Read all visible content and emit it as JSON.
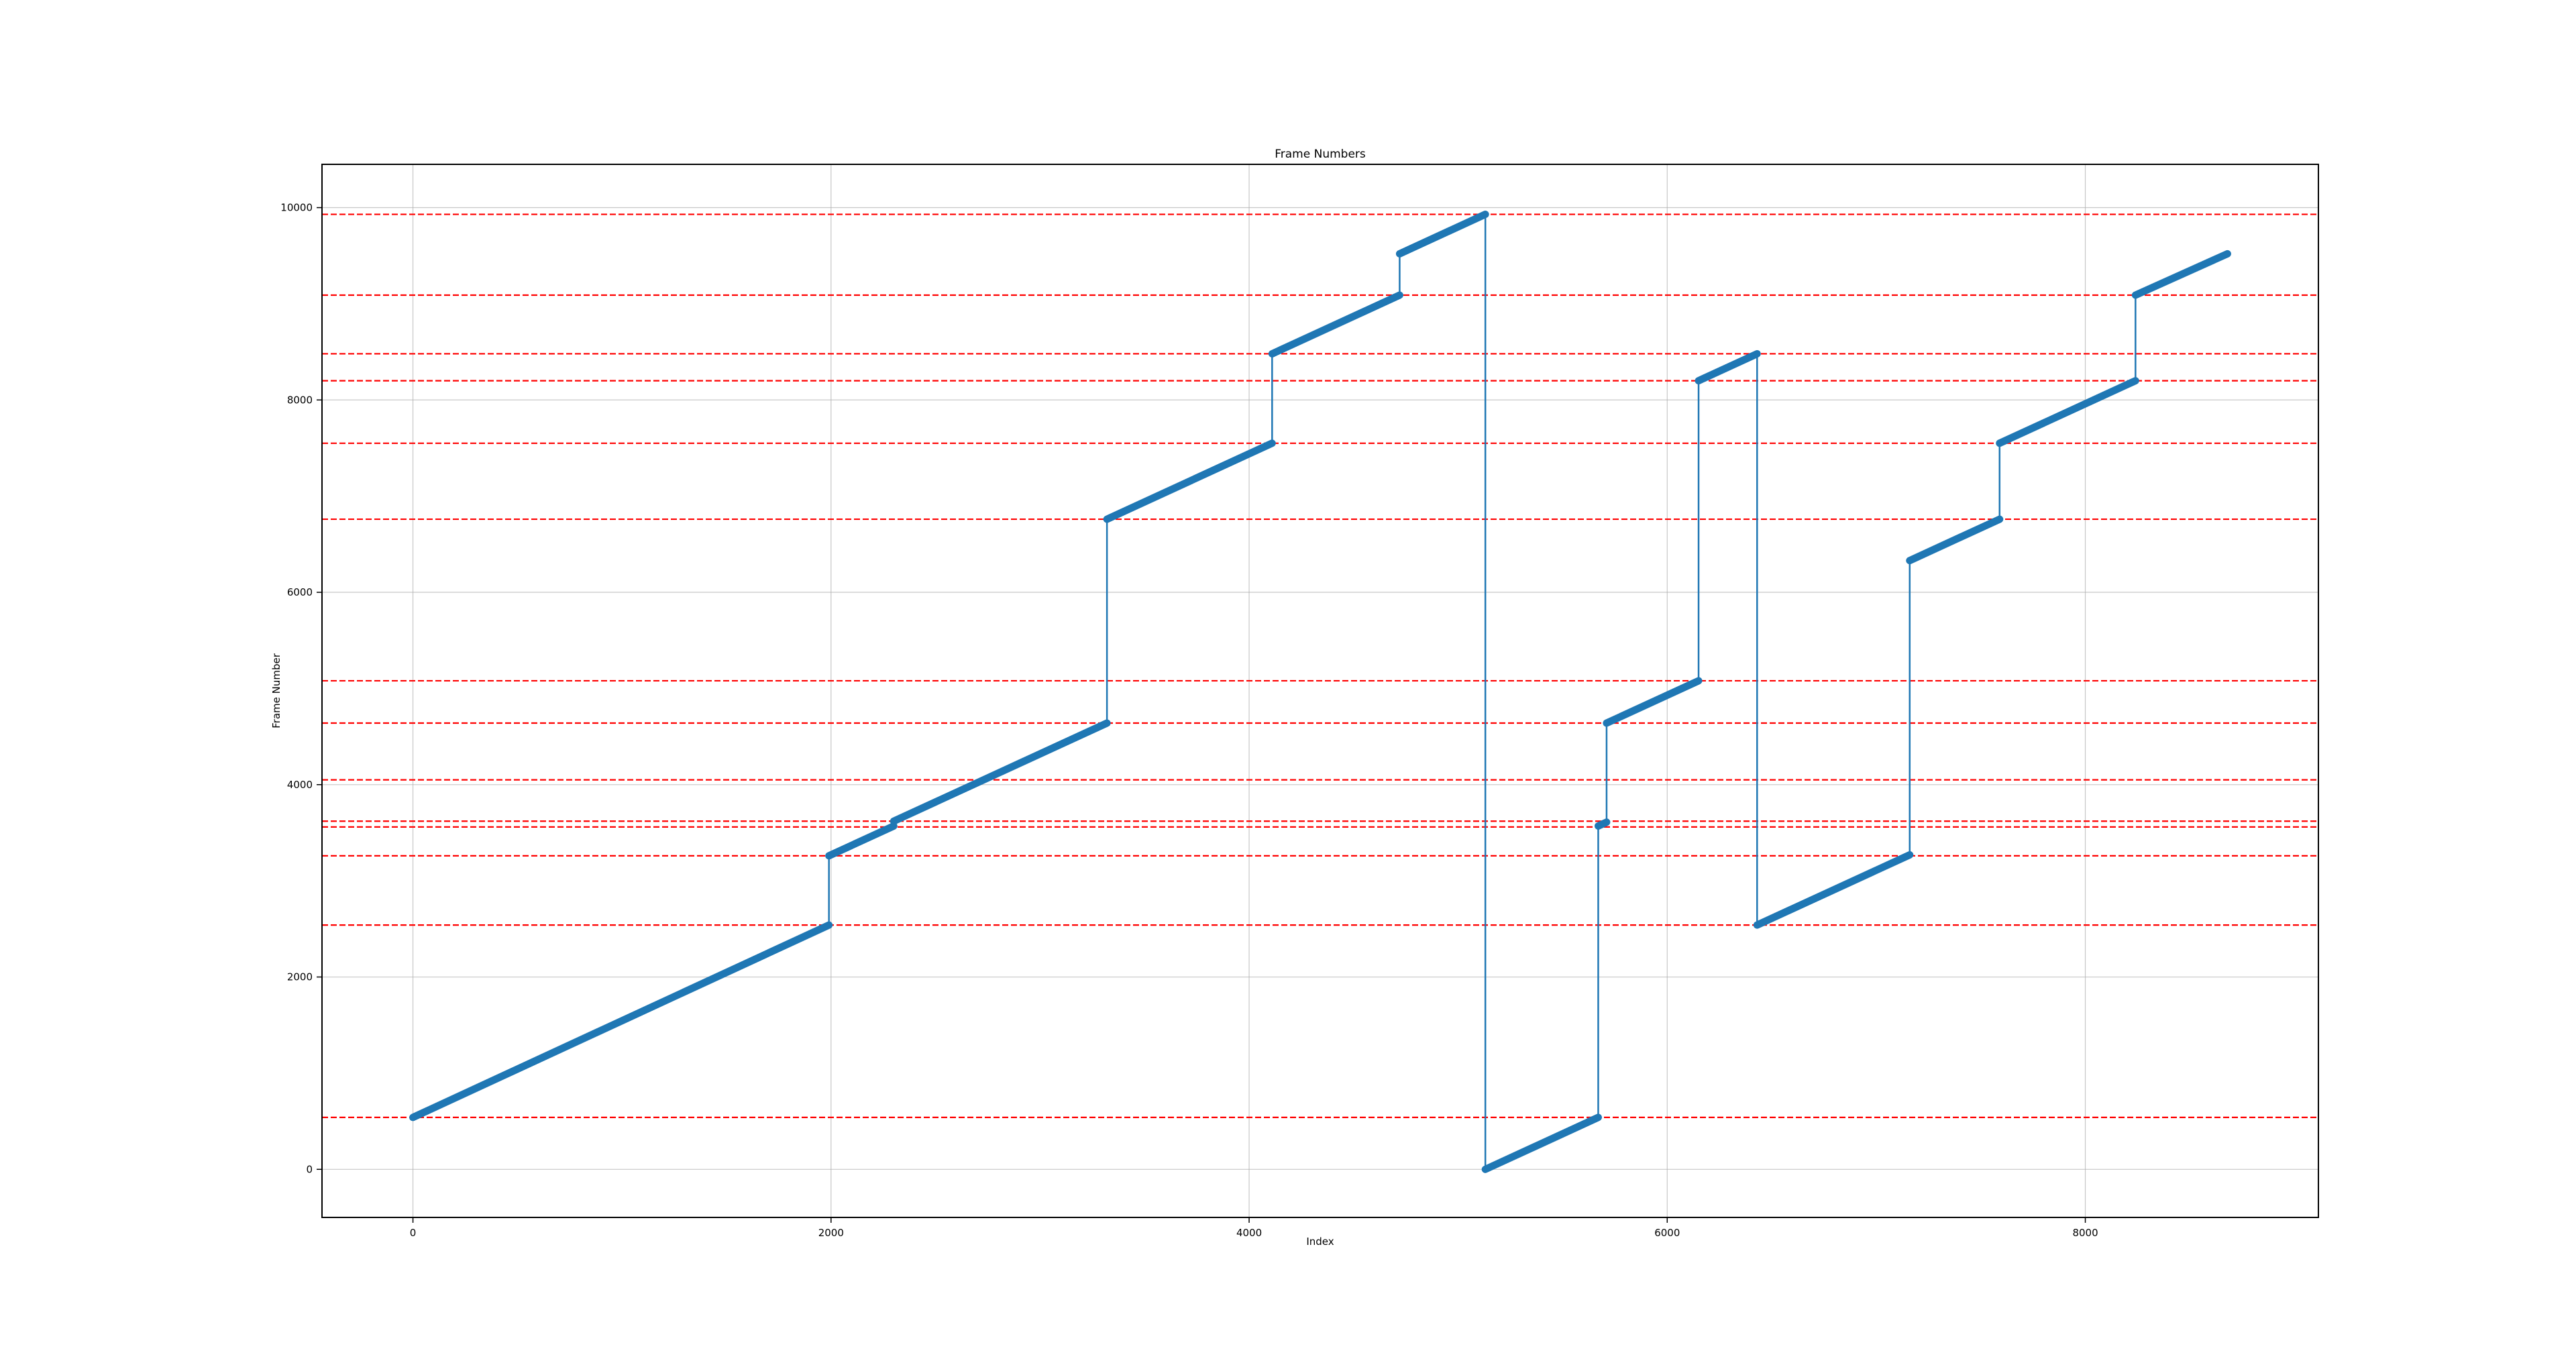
{
  "chart_data": {
    "type": "line",
    "title": "Frame Numbers",
    "xlabel": "Index",
    "ylabel": "Frame Number",
    "xlim": [
      -435,
      9115
    ],
    "ylim": [
      -500,
      10450
    ],
    "xticks": [
      0,
      2000,
      4000,
      6000,
      8000
    ],
    "yticks": [
      0,
      2000,
      4000,
      6000,
      8000,
      10000
    ],
    "xtick_labels": [
      "0",
      "2000",
      "4000",
      "6000",
      "8000"
    ],
    "ytick_labels": [
      "0",
      "2000",
      "4000",
      "6000",
      "8000",
      "10000"
    ],
    "grid": true,
    "legend": "none",
    "series": [
      {
        "color": "#1f77b4",
        "segments": [
          [
            [
              0,
              540
            ],
            [
              1990,
              2540
            ]
          ],
          [
            [
              1990,
              3260
            ],
            [
              2300,
              3570
            ]
          ],
          [
            [
              2300,
              3620
            ],
            [
              3320,
              4640
            ]
          ],
          [
            [
              3320,
              6760
            ],
            [
              4110,
              7550
            ]
          ],
          [
            [
              4110,
              8480
            ],
            [
              4720,
              9090
            ]
          ],
          [
            [
              4720,
              9520
            ],
            [
              5130,
              9930
            ]
          ],
          [
            [
              5130,
              0
            ],
            [
              5670,
              540
            ]
          ],
          [
            [
              5670,
              3570
            ],
            [
              5710,
              3610
            ]
          ],
          [
            [
              5710,
              4640
            ],
            [
              6150,
              5080
            ]
          ],
          [
            [
              6150,
              8200
            ],
            [
              6430,
              8480
            ]
          ],
          [
            [
              6430,
              2540
            ],
            [
              7160,
              3270
            ]
          ],
          [
            [
              7160,
              6330
            ],
            [
              7590,
              6760
            ]
          ],
          [
            [
              7590,
              7550
            ],
            [
              8240,
              8200
            ]
          ],
          [
            [
              8240,
              9090
            ],
            [
              8680,
              9520
            ]
          ]
        ]
      }
    ],
    "reference_lines": {
      "color": "#ff0000",
      "style": "dashed",
      "y": [
        540,
        2540,
        3260,
        3560,
        3620,
        4050,
        4640,
        5080,
        6760,
        7550,
        8200,
        8480,
        9090,
        9930
      ]
    }
  }
}
